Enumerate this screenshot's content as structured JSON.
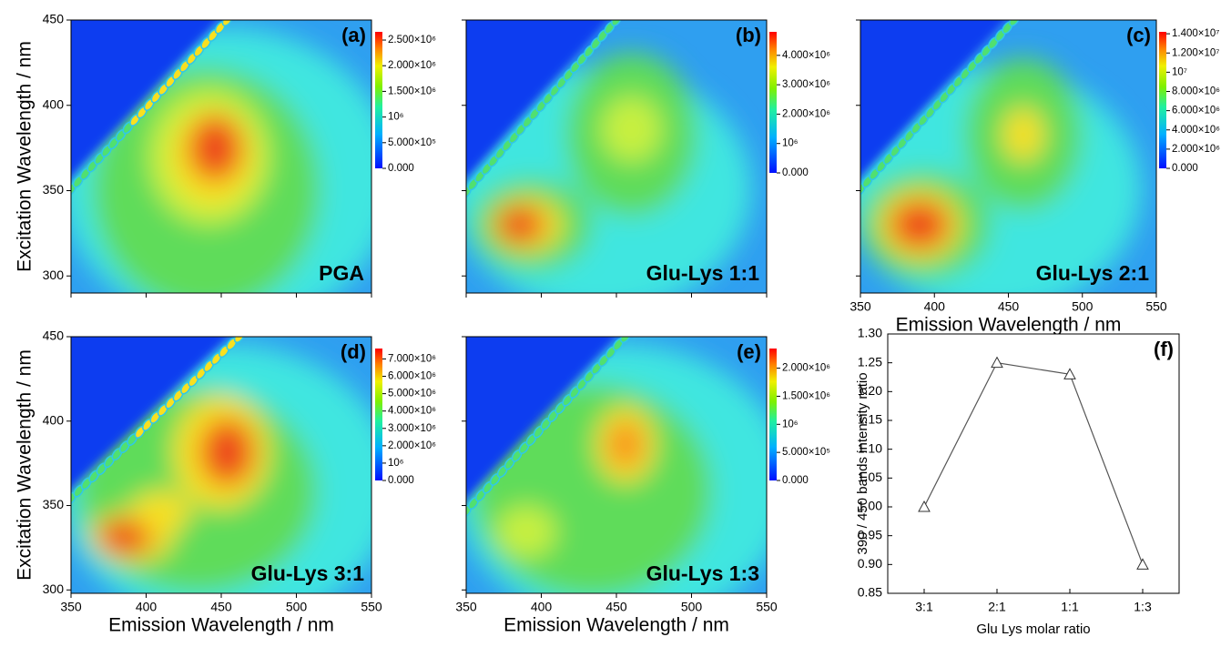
{
  "chart_data": [
    {
      "type": "heatmap",
      "title": "(a)",
      "annotation": "PGA",
      "ylabel": "Excitation Wavelength / nm",
      "xlim": [
        350,
        550
      ],
      "xticks": [
        350,
        400,
        450,
        500,
        550
      ],
      "show_xticklabels": false,
      "ylim": [
        290,
        450
      ],
      "yticks": [
        300,
        350,
        400,
        450
      ],
      "show_yticklabels": true,
      "colorbar": {
        "lim": [
          0,
          2660000
        ],
        "ticks": [
          {
            "value": 0,
            "label": "0.000"
          },
          {
            "value": 500000,
            "label": "5.000×10⁵"
          },
          {
            "value": 1000000,
            "label": "10⁶"
          },
          {
            "value": 1500000,
            "label": "1.500×10⁶"
          },
          {
            "value": 2000000,
            "label": "2.000×10⁶"
          },
          {
            "value": 2500000,
            "label": "2.500×10⁶"
          }
        ]
      }
    },
    {
      "type": "heatmap",
      "title": "(b)",
      "annotation": "Glu-Lys 1:1",
      "xlim": [
        350,
        550
      ],
      "xticks": [
        350,
        400,
        450,
        500,
        550
      ],
      "show_xticklabels": false,
      "ylim": [
        290,
        450
      ],
      "yticks": [
        300,
        350,
        400,
        450
      ],
      "show_yticklabels": false,
      "colorbar": {
        "lim": [
          0,
          4800000
        ],
        "ticks": [
          {
            "value": 0,
            "label": "0.000"
          },
          {
            "value": 1000000,
            "label": "10⁶"
          },
          {
            "value": 2000000,
            "label": "2.000×10⁶"
          },
          {
            "value": 3000000,
            "label": "3.000×10⁶"
          },
          {
            "value": 4000000,
            "label": "4.000×10⁶"
          }
        ]
      }
    },
    {
      "type": "heatmap",
      "title": "(c)",
      "annotation": "Glu-Lys 2:1",
      "xlabel": "Emission Wavelength / nm",
      "xlim": [
        350,
        550
      ],
      "xticks": [
        350,
        400,
        450,
        500,
        550
      ],
      "show_xticklabels": true,
      "ylim": [
        290,
        450
      ],
      "yticks": [
        300,
        350,
        400,
        450
      ],
      "show_yticklabels": false,
      "colorbar": {
        "lim": [
          0,
          14200000
        ],
        "ticks": [
          {
            "value": 0,
            "label": "0.000"
          },
          {
            "value": 2000000,
            "label": "2.000×10⁶"
          },
          {
            "value": 4000000,
            "label": "4.000×10⁶"
          },
          {
            "value": 6000000,
            "label": "6.000×10⁶"
          },
          {
            "value": 8000000,
            "label": "8.000×10⁶"
          },
          {
            "value": 10000000,
            "label": "10⁷"
          },
          {
            "value": 12000000,
            "label": "1.200×10⁷"
          },
          {
            "value": 14000000,
            "label": "1.400×10⁷"
          }
        ]
      }
    },
    {
      "type": "heatmap",
      "title": "(d)",
      "annotation": "Glu-Lys 3:1",
      "xlabel": "Emission Wavelength / nm",
      "ylabel": "Excitation Wavelength / nm",
      "xlim": [
        350,
        550
      ],
      "xticks": [
        350,
        400,
        450,
        500,
        550
      ],
      "show_xticklabels": true,
      "ylim": [
        298,
        450
      ],
      "yticks": [
        300,
        350,
        400,
        450
      ],
      "show_yticklabels": true,
      "colorbar": {
        "lim": [
          0,
          7600000
        ],
        "ticks": [
          {
            "value": 0,
            "label": "0.000"
          },
          {
            "value": 1000000,
            "label": "10⁶"
          },
          {
            "value": 2000000,
            "label": "2.000×10⁶"
          },
          {
            "value": 3000000,
            "label": "3.000×10⁶"
          },
          {
            "value": 4000000,
            "label": "4.000×10⁶"
          },
          {
            "value": 5000000,
            "label": "5.000×10⁶"
          },
          {
            "value": 6000000,
            "label": "6.000×10⁶"
          },
          {
            "value": 7000000,
            "label": "7.000×10⁶"
          }
        ]
      }
    },
    {
      "type": "heatmap",
      "title": "(e)",
      "annotation": "Glu-Lys 1:3",
      "xlabel": "Emission Wavelength / nm",
      "xlim": [
        350,
        550
      ],
      "xticks": [
        350,
        400,
        450,
        500,
        550
      ],
      "show_xticklabels": true,
      "ylim": [
        298,
        450
      ],
      "yticks": [
        300,
        350,
        400,
        450
      ],
      "show_yticklabels": false,
      "colorbar": {
        "lim": [
          0,
          2350000
        ],
        "ticks": [
          {
            "value": 0,
            "label": "0.000"
          },
          {
            "value": 500000,
            "label": "5.000×10⁵"
          },
          {
            "value": 1000000,
            "label": "10⁶"
          },
          {
            "value": 1500000,
            "label": "1.500×10⁶"
          },
          {
            "value": 2000000,
            "label": "2.000×10⁶"
          }
        ]
      }
    },
    {
      "type": "line",
      "title": "(f)",
      "xlabel": "Glu Lys molar ratio",
      "ylabel": "390 / 450 bands intensity ratio",
      "categories": [
        "3:1",
        "2:1",
        "1:1",
        "1:3"
      ],
      "values": [
        1.0,
        1.25,
        1.23,
        0.9
      ],
      "color": "#555555",
      "ylim": [
        0.85,
        1.3
      ],
      "yticks": [
        0.85,
        {
          "value": 0.9,
          "label": "0.90"
        },
        0.95,
        {
          "value": 1.0,
          "label": "1.00"
        },
        1.05,
        {
          "value": 1.1,
          "label": "1.10"
        },
        1.15,
        {
          "value": 1.2,
          "label": "1.20"
        },
        1.25,
        {
          "value": 1.3,
          "label": "1.30"
        }
      ]
    }
  ]
}
